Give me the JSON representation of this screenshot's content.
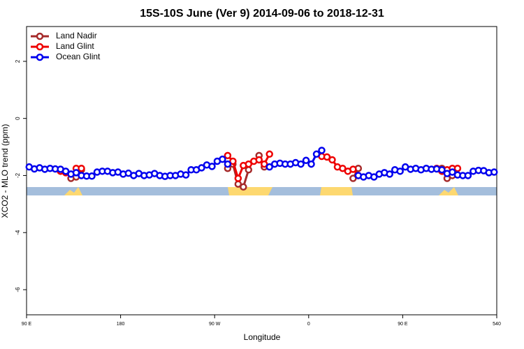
{
  "chart_data": {
    "type": "line",
    "title": "15S-10S June (Ver 9)   2014-09-06 to 2018-12-31",
    "xlabel": "Longitude",
    "ylabel": "XCO2 - MLO trend (ppm)",
    "xlim": [
      90,
      540
    ],
    "ylim": [
      -6.88,
      3.22
    ],
    "xticks": [
      {
        "value": 90,
        "label": "90 E"
      },
      180,
      {
        "value": 270,
        "label": "90 W"
      },
      {
        "value": 360,
        "label": "0"
      },
      {
        "value": 450,
        "label": "90 E"
      },
      540
    ],
    "yticks": [
      -6,
      -4,
      -2,
      0,
      2
    ],
    "legend": "top-left",
    "x": [
      92.5,
      97.5,
      102.5,
      107.5,
      112.5,
      117.5,
      122.5,
      127.5,
      132.5,
      137.5,
      142.5,
      147.5,
      152.5,
      157.5,
      162.5,
      167.5,
      172.5,
      177.5,
      182.5,
      187.5,
      192.5,
      197.5,
      202.5,
      207.5,
      212.5,
      217.5,
      222.5,
      227.5,
      232.5,
      237.5,
      242.5,
      247.5,
      252.5,
      257.5,
      262.5,
      267.5,
      272.5,
      277.5,
      282.5,
      287.5,
      292.5,
      297.5,
      302.5,
      307.5,
      312.5,
      317.5,
      322.5,
      327.5,
      332.5,
      337.5,
      342.5,
      347.5,
      352.5,
      357.5,
      362.5,
      367.5,
      372.5,
      377.5,
      382.5,
      387.5,
      392.5,
      397.5,
      402.5,
      407.5,
      412.5,
      417.5,
      422.5,
      427.5,
      432.5,
      437.5,
      442.5,
      447.5,
      452.5,
      457.5,
      462.5,
      467.5,
      472.5,
      477.5,
      482.5,
      487.5,
      492.5,
      497.5,
      502.5,
      507.5,
      512.5,
      517.5,
      522.5,
      527.5,
      532.5,
      537.5
    ],
    "series": [
      {
        "name": "Land Nadir",
        "color": "#a52a2a",
        "values": [
          null,
          null,
          null,
          null,
          null,
          null,
          null,
          null,
          -2.1,
          -2.05,
          -1.8,
          null,
          null,
          null,
          null,
          null,
          null,
          null,
          null,
          null,
          null,
          null,
          null,
          null,
          null,
          null,
          null,
          null,
          null,
          null,
          null,
          null,
          null,
          null,
          null,
          null,
          null,
          null,
          -1.75,
          -1.6,
          -2.3,
          -2.4,
          -1.8,
          null,
          -1.3,
          -1.7,
          null,
          null,
          null,
          null,
          null,
          null,
          null,
          null,
          null,
          null,
          null,
          null,
          null,
          null,
          null,
          null,
          -2.1,
          -1.75,
          null,
          null,
          null,
          null,
          null,
          null,
          null,
          null,
          null,
          null,
          null,
          null,
          null,
          null,
          null,
          -1.75,
          -2.1,
          -2.0,
          null,
          null,
          null,
          null,
          null,
          null,
          null,
          null
        ]
      },
      {
        "name": "Land Glint",
        "color": "#ee0000",
        "values": [
          null,
          null,
          null,
          null,
          null,
          null,
          -1.85,
          -1.9,
          null,
          -1.75,
          -1.75,
          null,
          null,
          null,
          null,
          null,
          null,
          null,
          null,
          null,
          null,
          null,
          null,
          null,
          null,
          null,
          null,
          null,
          null,
          null,
          null,
          null,
          null,
          null,
          null,
          null,
          null,
          null,
          -1.3,
          -1.5,
          -2.1,
          -1.65,
          -1.6,
          -1.5,
          -1.45,
          -1.6,
          -1.25,
          null,
          null,
          null,
          null,
          null,
          null,
          null,
          null,
          null,
          -1.33,
          -1.35,
          -1.45,
          -1.7,
          -1.75,
          -1.85,
          -1.78,
          -2.0,
          null,
          null,
          null,
          null,
          null,
          null,
          null,
          null,
          null,
          null,
          null,
          null,
          null,
          null,
          -1.75,
          -1.85,
          -1.8,
          -1.75,
          -1.75,
          null,
          null,
          null,
          null,
          null,
          null,
          null
        ]
      },
      {
        "name": "Ocean Glint",
        "color": "#0000ee",
        "values": [
          -1.7,
          -1.77,
          -1.73,
          -1.78,
          -1.75,
          -1.77,
          -1.78,
          -1.85,
          -1.95,
          -1.9,
          -2.0,
          -2.02,
          -2.02,
          -1.88,
          -1.85,
          -1.85,
          -1.9,
          -1.88,
          -1.95,
          -1.92,
          -2.0,
          -1.93,
          -2.0,
          -1.98,
          -1.93,
          -2.0,
          -2.03,
          -2.0,
          -2.0,
          -1.95,
          -1.98,
          -1.8,
          -1.8,
          -1.73,
          -1.63,
          -1.68,
          -1.5,
          -1.43,
          -1.6,
          null,
          null,
          null,
          null,
          null,
          null,
          null,
          -1.7,
          -1.6,
          -1.57,
          -1.6,
          -1.6,
          -1.55,
          -1.6,
          -1.47,
          -1.6,
          -1.25,
          -1.12,
          null,
          null,
          null,
          null,
          null,
          null,
          -2.0,
          -2.05,
          -2.0,
          -2.05,
          -1.95,
          -1.9,
          -1.95,
          -1.8,
          -1.85,
          -1.7,
          -1.78,
          -1.75,
          -1.8,
          -1.75,
          -1.78,
          -1.77,
          -1.8,
          -1.93,
          -1.88,
          -1.98,
          -2.0,
          -2.0,
          -1.85,
          -1.82,
          -1.83,
          -1.9,
          -1.88
        ]
      }
    ]
  }
}
